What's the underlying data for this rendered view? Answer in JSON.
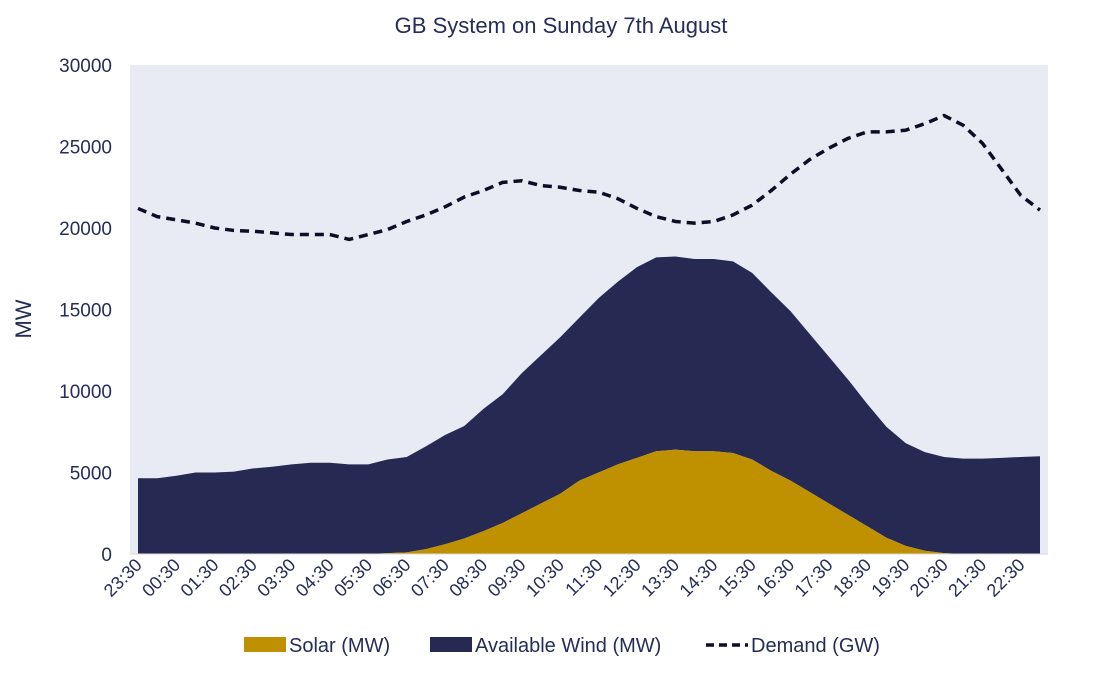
{
  "chart_data": {
    "type": "area",
    "title": "GB System on Sunday 7th August",
    "ylabel": "MW",
    "xlabel": "",
    "ylim": [
      0,
      30000
    ],
    "yticks": [
      0,
      5000,
      10000,
      15000,
      20000,
      25000,
      30000
    ],
    "x_tick_labels": [
      "23:30",
      "00:30",
      "01:30",
      "02:30",
      "03:30",
      "04:30",
      "05:30",
      "06:30",
      "07:30",
      "08:30",
      "09:30",
      "10:30",
      "11:30",
      "12:30",
      "13:30",
      "14:30",
      "15:30",
      "16:30",
      "17:30",
      "18:30",
      "19:30",
      "20:30",
      "21:30",
      "22:30"
    ],
    "x": [
      "23:30",
      "00:00",
      "00:30",
      "01:00",
      "01:30",
      "02:00",
      "02:30",
      "03:00",
      "03:30",
      "04:00",
      "04:30",
      "05:00",
      "05:30",
      "06:00",
      "06:30",
      "07:00",
      "07:30",
      "08:00",
      "08:30",
      "09:00",
      "09:30",
      "10:00",
      "10:30",
      "11:00",
      "11:30",
      "12:00",
      "12:30",
      "13:00",
      "13:30",
      "14:00",
      "14:30",
      "15:00",
      "15:30",
      "16:00",
      "16:30",
      "17:00",
      "17:30",
      "18:00",
      "18:30",
      "19:00",
      "19:30",
      "20:00",
      "20:30",
      "21:00",
      "21:30",
      "22:00",
      "22:30",
      "23:00"
    ],
    "series": [
      {
        "name": "Solar (MW)",
        "kind": "area",
        "color": "#bf9000",
        "values": [
          0,
          0,
          0,
          0,
          0,
          0,
          0,
          0,
          0,
          0,
          0,
          0,
          0,
          50,
          100,
          300,
          600,
          950,
          1400,
          1900,
          2500,
          3100,
          3700,
          4500,
          5000,
          5500,
          5900,
          6300,
          6400,
          6300,
          6300,
          6200,
          5800,
          5100,
          4500,
          3800,
          3100,
          2400,
          1700,
          1000,
          500,
          200,
          50,
          0,
          0,
          0,
          0,
          0
        ]
      },
      {
        "name": "Available Wind (MW)",
        "kind": "area",
        "color": "#262a53",
        "values": [
          4650,
          4650,
          4800,
          5000,
          5000,
          5050,
          5250,
          5350,
          5500,
          5600,
          5600,
          5500,
          5500,
          5750,
          5850,
          6300,
          6700,
          6900,
          7500,
          7900,
          8600,
          9100,
          9600,
          10000,
          10700,
          11200,
          11700,
          11900,
          11850,
          11800,
          11800,
          11750,
          11450,
          10950,
          10400,
          9700,
          9000,
          8300,
          7500,
          6800,
          6300,
          6050,
          5900,
          5850,
          5850,
          5900,
          5950,
          6000
        ]
      },
      {
        "name": "Demand (GW)",
        "kind": "line",
        "style": "dashed",
        "color": "#0d0d26",
        "values": [
          21200,
          20700,
          20500,
          20300,
          20000,
          19850,
          19800,
          19700,
          19600,
          19600,
          19600,
          19300,
          19600,
          19900,
          20400,
          20800,
          21300,
          21900,
          22300,
          22800,
          22900,
          22600,
          22500,
          22300,
          22200,
          21800,
          21200,
          20700,
          20400,
          20300,
          20400,
          20800,
          21400,
          22300,
          23300,
          24200,
          24900,
          25500,
          25900,
          25900,
          26000,
          26400,
          26900,
          26300,
          25200,
          23600,
          22000,
          21100
        ]
      }
    ],
    "legend": {
      "position": "bottom",
      "entries": [
        "Solar (MW)",
        "Available Wind (MW)",
        "Demand (GW)"
      ]
    },
    "plot_background": "#e8eaf4",
    "text_color": "#262d56",
    "grid": false
  }
}
